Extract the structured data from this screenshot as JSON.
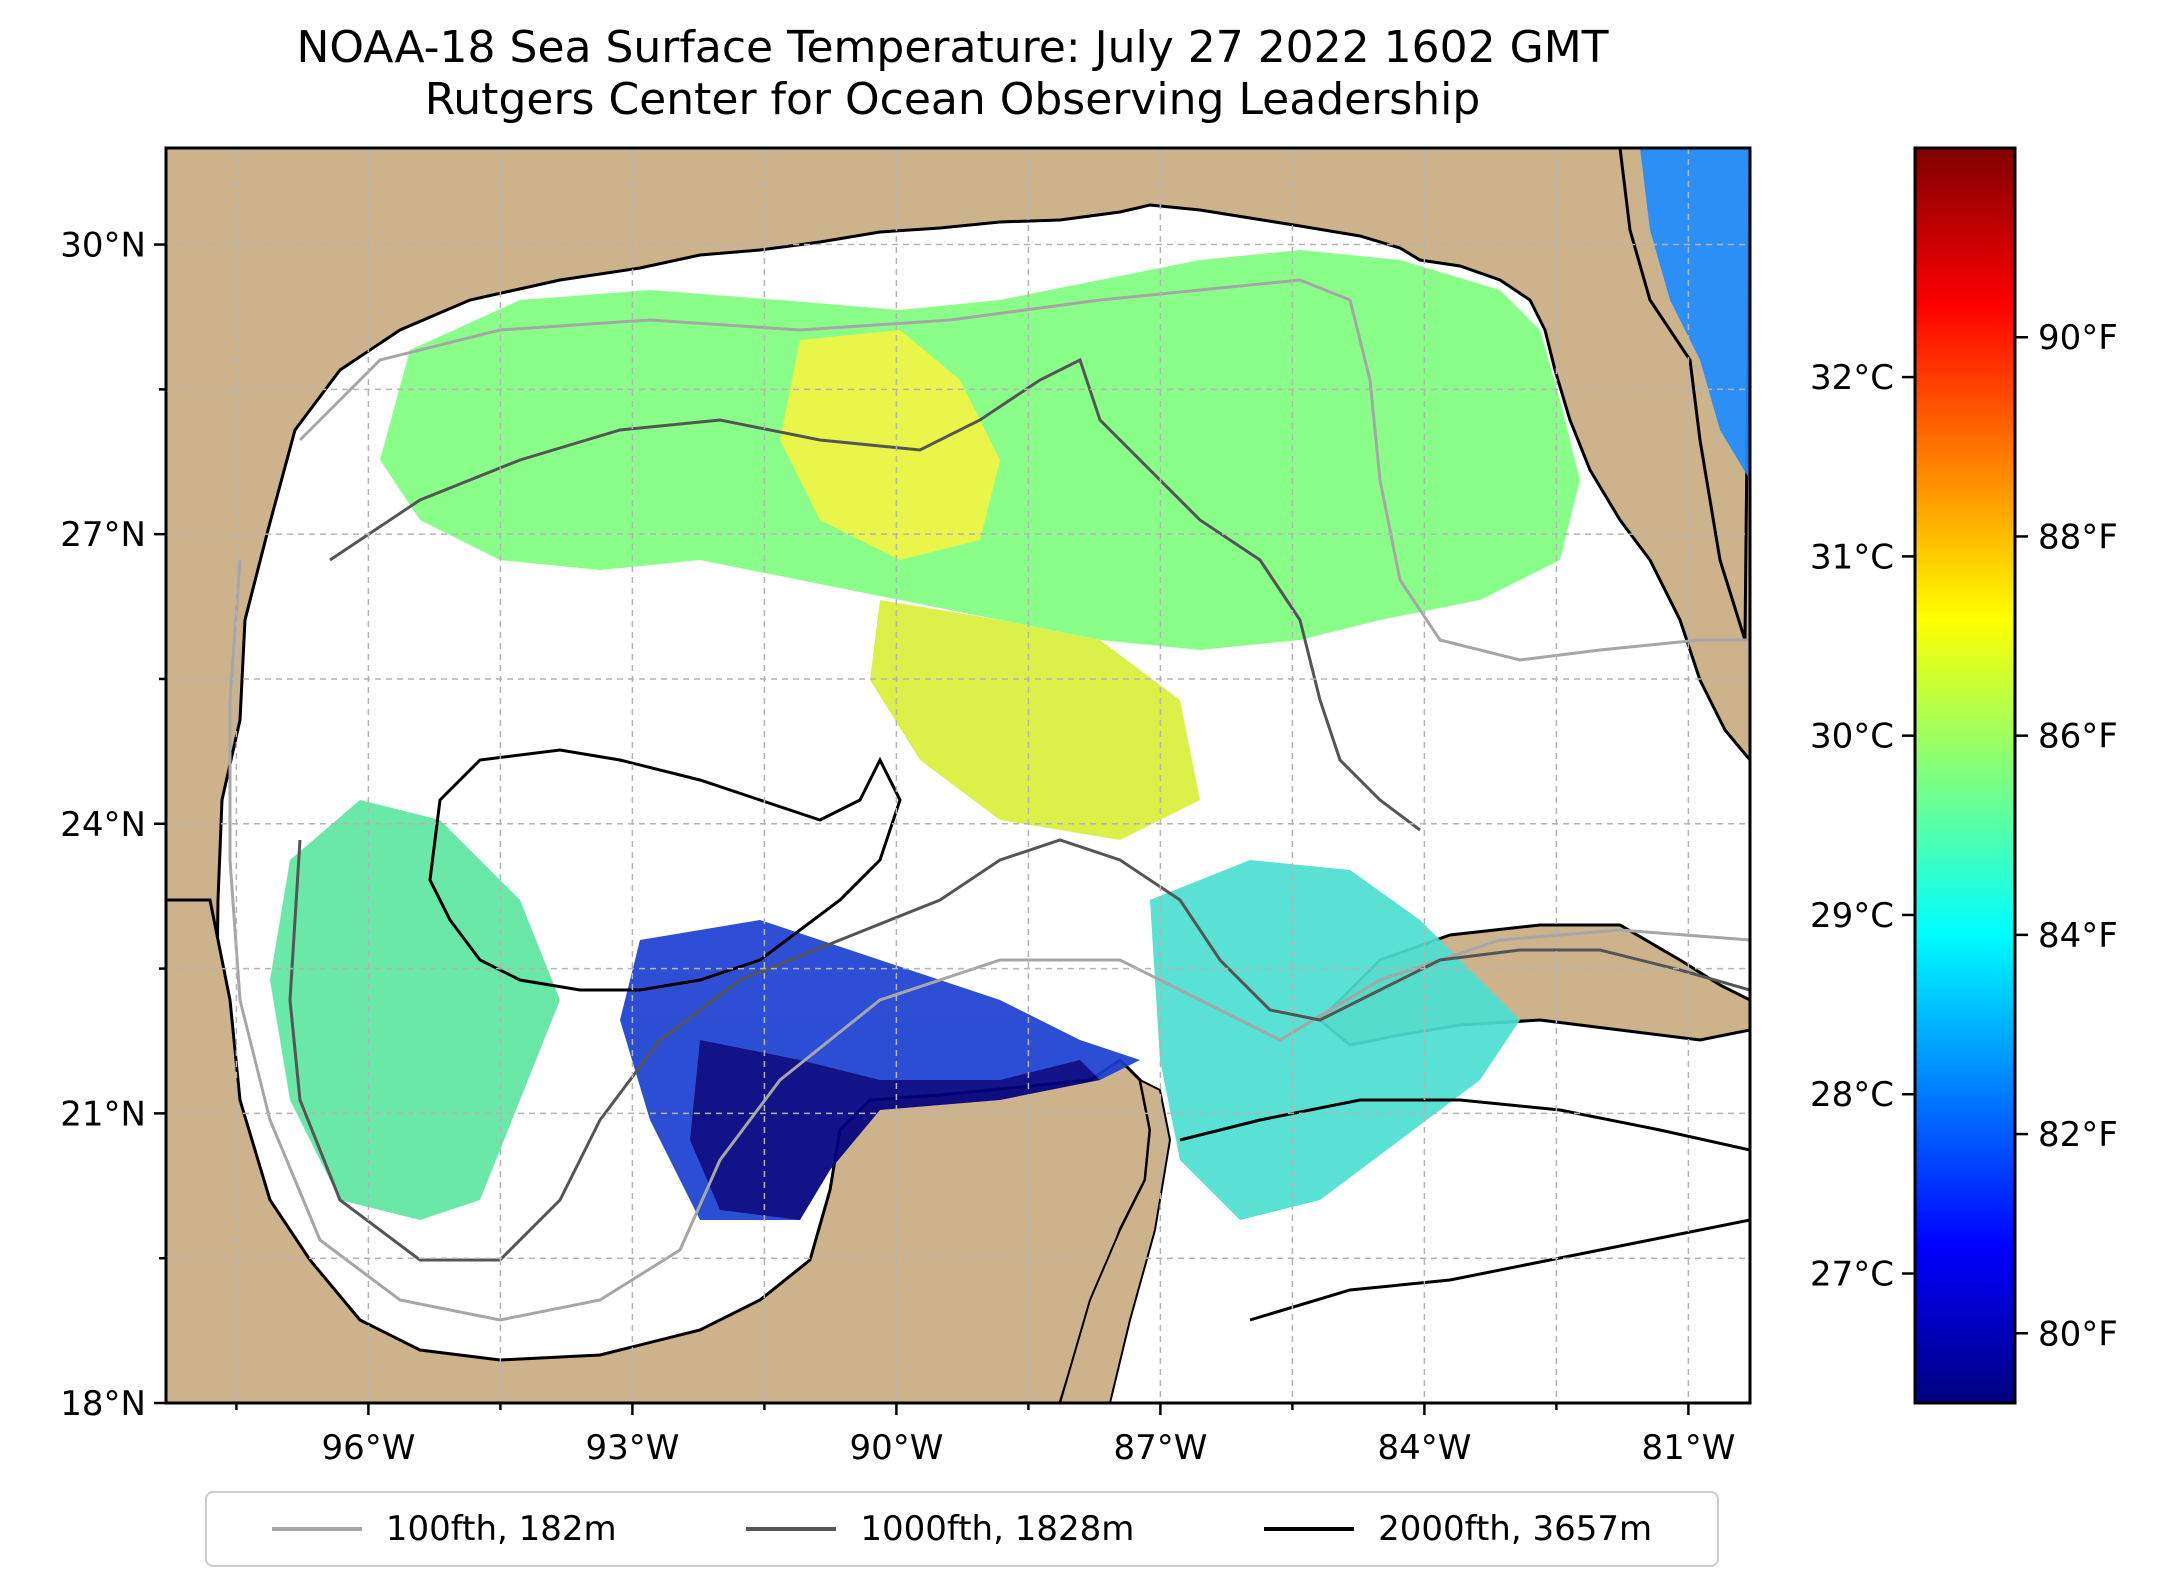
{
  "title_line1": "NOAA-18 Sea Surface Temperature: July 27 2022 1602 GMT",
  "title_line2": "Rutgers Center for Ocean Observing Leadership",
  "map": {
    "lat_range": [
      18,
      31
    ],
    "lon_range": [
      -98.3,
      -80.3
    ],
    "lat_ticks": [
      {
        "value": 30,
        "label": "30°N"
      },
      {
        "value": 27,
        "label": "27°N"
      },
      {
        "value": 24,
        "label": "24°N"
      },
      {
        "value": 21,
        "label": "21°N"
      },
      {
        "value": 18,
        "label": "18°N"
      }
    ],
    "lon_ticks": [
      {
        "value": -96,
        "label": "96°W"
      },
      {
        "value": -93,
        "label": "93°W"
      },
      {
        "value": -90,
        "label": "90°W"
      },
      {
        "value": -87,
        "label": "87°W"
      },
      {
        "value": -84,
        "label": "84°W"
      },
      {
        "value": -81,
        "label": "81°W"
      }
    ],
    "land_color": "#cdb38b",
    "coast_color": "#000000"
  },
  "colorbar": {
    "range_f": [
      79.3,
      91.9
    ],
    "celsius_ticks": [
      {
        "value": 32,
        "label": "32°C"
      },
      {
        "value": 31,
        "label": "31°C"
      },
      {
        "value": 30,
        "label": "30°C"
      },
      {
        "value": 29,
        "label": "29°C"
      },
      {
        "value": 28,
        "label": "28°C"
      },
      {
        "value": 27,
        "label": "27°C"
      }
    ],
    "fahrenheit_ticks": [
      {
        "value": 90,
        "label": "90°F"
      },
      {
        "value": 88,
        "label": "88°F"
      },
      {
        "value": 86,
        "label": "86°F"
      },
      {
        "value": 84,
        "label": "84°F"
      },
      {
        "value": 82,
        "label": "82°F"
      },
      {
        "value": 80,
        "label": "80°F"
      }
    ],
    "colors": [
      "#00007f",
      "#0000ff",
      "#007fff",
      "#00ffff",
      "#7fff7f",
      "#ffff00",
      "#ff7f00",
      "#ff0000",
      "#7f0000"
    ]
  },
  "legend": [
    {
      "label": "100fth, 182m",
      "color": "#a6a6a6"
    },
    {
      "label": "1000fth, 1828m",
      "color": "#555555"
    },
    {
      "label": "2000fth, 3657m",
      "color": "#000000"
    }
  ]
}
